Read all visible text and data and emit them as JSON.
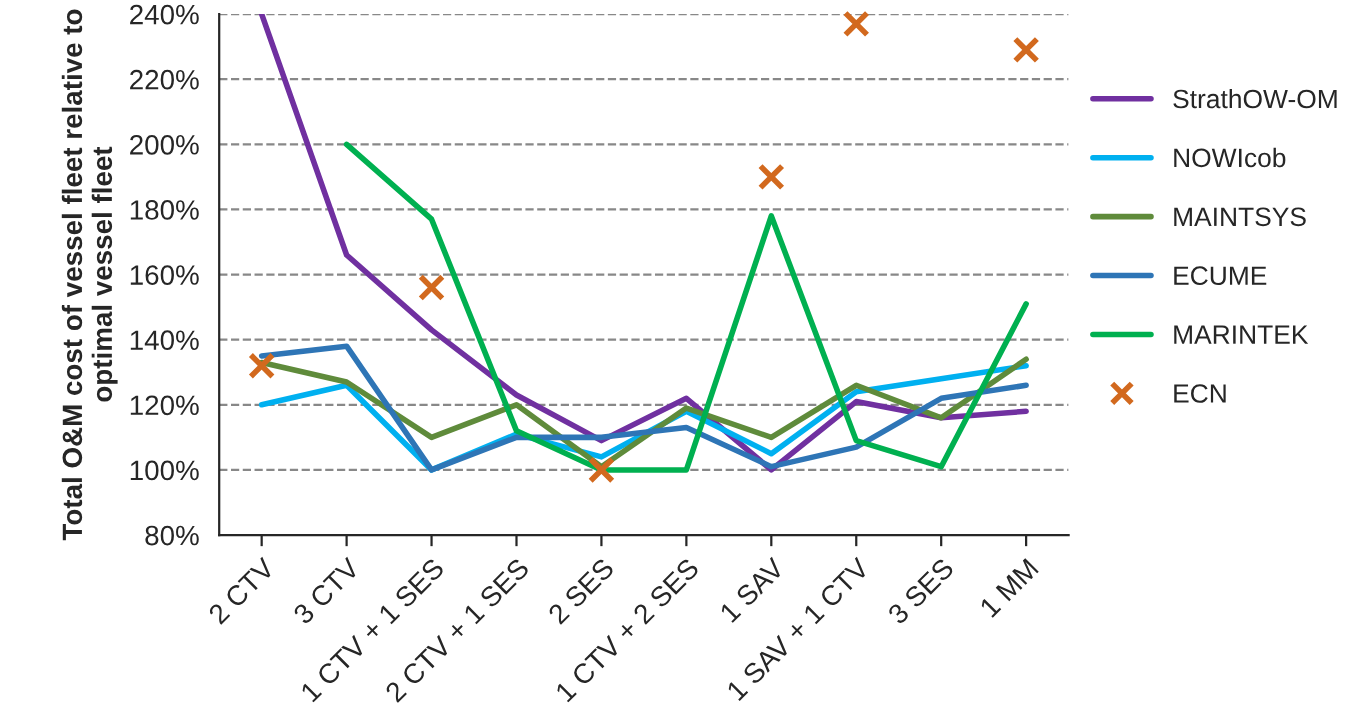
{
  "chart_data": {
    "type": "line",
    "ylabel": "Total O&M cost of vessel fleet relative to\noptimal vessel fleet",
    "categories": [
      "2 CTV",
      "3 CTV",
      "1 CTV + 1 SES",
      "2 CTV + 1 SES",
      "2 SES",
      "1 CTV + 2 SES",
      "1 SAV",
      "1 SAV + 1 CTV",
      "3 SES",
      "1 MM"
    ],
    "series": [
      {
        "name": "StrathOW-OM",
        "color": "#7030a0",
        "values": [
          240,
          166,
          143,
          123,
          109,
          122,
          100,
          121,
          116,
          118
        ]
      },
      {
        "name": "NOWIcob",
        "color": "#00b0f0",
        "values": [
          120,
          126,
          100,
          111,
          104,
          118,
          105,
          124,
          128,
          132
        ]
      },
      {
        "name": "MAINTSYS",
        "color": "#5f8b3b",
        "values": [
          133,
          127,
          110,
          120,
          101,
          119,
          110,
          126,
          116,
          134
        ]
      },
      {
        "name": "ECUME",
        "color": "#2e75b6",
        "values": [
          135,
          138,
          100,
          110,
          110,
          113,
          101,
          107,
          122,
          126
        ]
      },
      {
        "name": "MARINTEK",
        "color": "#00b050",
        "values": [
          null,
          200,
          177,
          112,
          100,
          100,
          178,
          109,
          101,
          151
        ]
      },
      {
        "name": "ECN",
        "color": "#d2691e",
        "type": "scatter",
        "marker": "cross",
        "values": [
          132,
          null,
          156,
          null,
          100,
          null,
          190,
          237,
          null,
          229
        ]
      }
    ],
    "ylim": [
      80,
      240
    ],
    "yticks": [
      {
        "value": 80,
        "label": "80%"
      },
      {
        "value": 100,
        "label": "100%"
      },
      {
        "value": 120,
        "label": "120%"
      },
      {
        "value": 140,
        "label": "140%"
      },
      {
        "value": 160,
        "label": "160%"
      },
      {
        "value": 180,
        "label": "180%"
      },
      {
        "value": 200,
        "label": "200%"
      },
      {
        "value": 220,
        "label": "220%"
      },
      {
        "value": 240,
        "label": "240%"
      }
    ],
    "grid": "y",
    "legend": "right"
  }
}
